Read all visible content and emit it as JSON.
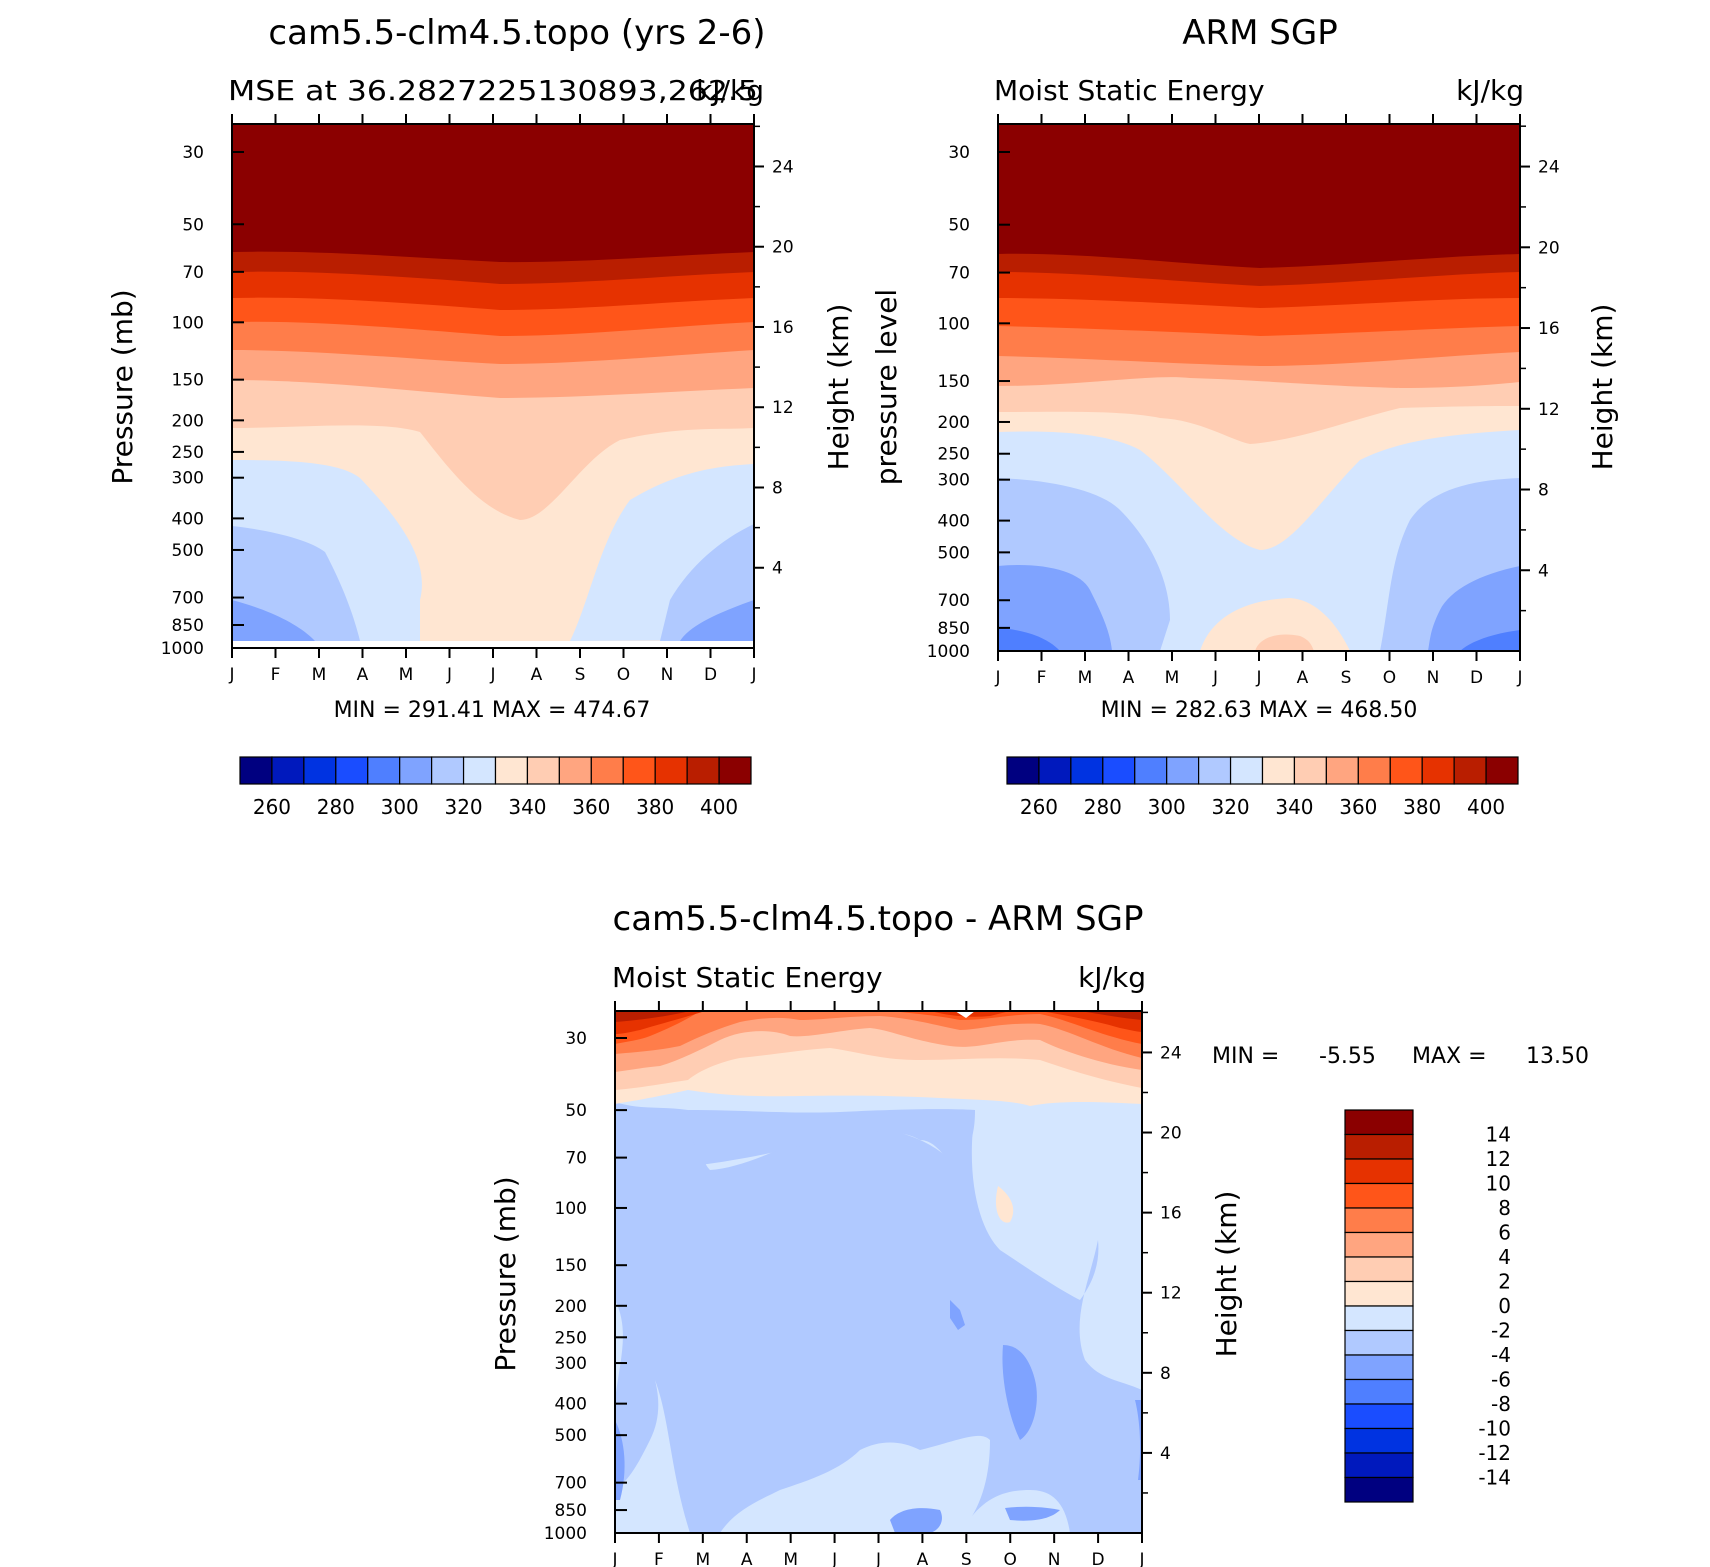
{
  "palette": [
    "#000080",
    "#0019bd",
    "#0033e1",
    "#1a4dff",
    "#4f7fff",
    "#7fa3ff",
    "#b0c9ff",
    "#d4e6ff",
    "#ffe6d2",
    "#ffcdb3",
    "#ffa580",
    "#ff7d4a",
    "#ff5519",
    "#e63200",
    "#b91e00",
    "#8b0000"
  ],
  "chart_data": [
    {
      "id": "model",
      "type": "contour",
      "title": "cam5.5-clm4.5.topo (yrs 2-6)",
      "subtitle_left": "MSE at 36.2827225130893,262.5",
      "subtitle_right": "kJ/kg",
      "ylabel": "Pressure (mb)",
      "y2label": "Height (km)",
      "pressure_ticks": [
        "30",
        "50",
        "70",
        "100",
        "150",
        "200",
        "250",
        "300",
        "400",
        "500",
        "700",
        "850",
        "1000"
      ],
      "height_ticks": [
        "24",
        "20",
        "16",
        "12",
        "8",
        "4"
      ],
      "months": [
        "J",
        "F",
        "M",
        "A",
        "M",
        "J",
        "J",
        "A",
        "S",
        "O",
        "N",
        "D",
        "J"
      ],
      "min_max_text": "MIN = 291.41 MAX = 474.67",
      "min": 291.41,
      "max": 474.67,
      "levels": [
        "260",
        "280",
        "300",
        "320",
        "340",
        "360",
        "380",
        "400"
      ]
    },
    {
      "id": "obs",
      "type": "contour",
      "title": "ARM SGP",
      "subtitle_left": "Moist Static Energy",
      "subtitle_right": "kJ/kg",
      "ylabel": "pressure level",
      "y2label": "Height (km)",
      "pressure_ticks": [
        "30",
        "50",
        "70",
        "100",
        "150",
        "200",
        "250",
        "300",
        "400",
        "500",
        "700",
        "850",
        "1000"
      ],
      "height_ticks": [
        "24",
        "20",
        "16",
        "12",
        "8",
        "4"
      ],
      "months": [
        "J",
        "F",
        "M",
        "A",
        "M",
        "J",
        "J",
        "A",
        "S",
        "O",
        "N",
        "D",
        "J"
      ],
      "min_max_text": "MIN = 282.63 MAX = 468.50",
      "min": 282.63,
      "max": 468.5,
      "levels": [
        "260",
        "280",
        "300",
        "320",
        "340",
        "360",
        "380",
        "400"
      ]
    },
    {
      "id": "diff",
      "type": "contour",
      "title": "cam5.5-clm4.5.topo - ARM SGP",
      "subtitle_left": "Moist Static Energy",
      "subtitle_right": "kJ/kg",
      "ylabel": "Pressure (mb)",
      "y2label": "Height (km)",
      "pressure_ticks": [
        "30",
        "50",
        "70",
        "100",
        "150",
        "200",
        "250",
        "300",
        "400",
        "500",
        "700",
        "850",
        "1000"
      ],
      "height_ticks": [
        "24",
        "20",
        "16",
        "12",
        "8",
        "4"
      ],
      "months": [
        "J",
        "F",
        "M",
        "A",
        "M",
        "J",
        "J",
        "A",
        "S",
        "O",
        "N",
        "D",
        "J"
      ],
      "min_label": "MIN =",
      "min_value": "-5.55",
      "max_label": "MAX =",
      "max_value": "13.50",
      "min": -5.55,
      "max": 13.5,
      "levels": [
        "14",
        "12",
        "10",
        "8",
        "6",
        "4",
        "2",
        "0",
        "-2",
        "-4",
        "-6",
        "-8",
        "-10",
        "-12",
        "-14"
      ]
    }
  ]
}
